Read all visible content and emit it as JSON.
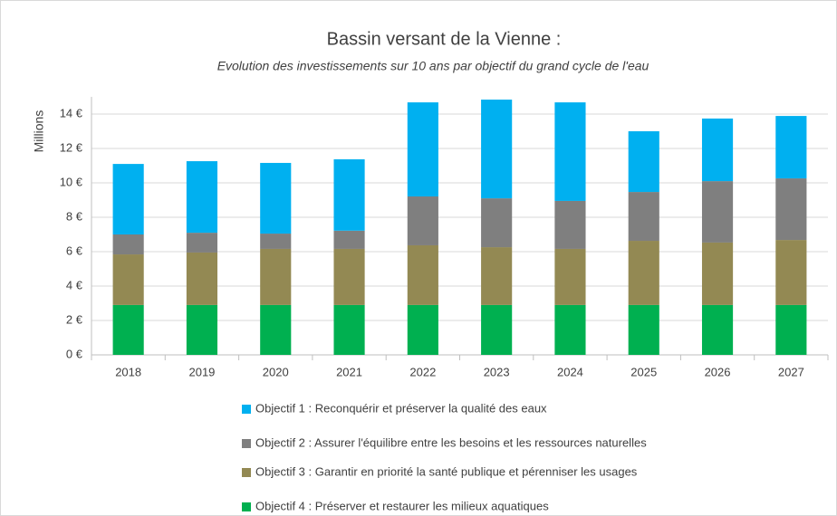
{
  "chart_data": {
    "type": "stacked_bar",
    "title": "Bassin versant de la Vienne :",
    "subtitle": "Evolution des investissements sur 10 ans par objectif du grand cycle de l'eau",
    "y_label": "Millions",
    "categories": [
      "2018",
      "2019",
      "2020",
      "2021",
      "2022",
      "2023",
      "2024",
      "2025",
      "2026",
      "2027"
    ],
    "series": [
      {
        "name": "Objectif 1 : Reconquérir et préserver la qualité des eaux",
        "color": "#00b0f0",
        "values": [
          4.1,
          4.16,
          4.11,
          4.15,
          5.47,
          5.74,
          5.73,
          3.53,
          3.64,
          3.63
        ]
      },
      {
        "name": "Objectif 2 : Assurer l'équilibre entre les besoins et les ressources naturelles",
        "color": "#7f7f7f",
        "values": [
          1.16,
          1.15,
          0.89,
          1.06,
          2.84,
          2.84,
          2.79,
          2.84,
          3.57,
          3.58
        ]
      },
      {
        "name": "Objectif 3 : Garantir en priorité la santé publique et pérenniser les usages",
        "color": "#938953",
        "values": [
          2.94,
          3.05,
          3.26,
          3.26,
          3.47,
          3.36,
          3.26,
          3.73,
          3.63,
          3.78
        ]
      },
      {
        "name": "Objectif 4 : Préserver et restaurer les milieux aquatiques",
        "color": "#00b050",
        "values": [
          2.9,
          2.9,
          2.9,
          2.9,
          2.9,
          2.9,
          2.9,
          2.9,
          2.9,
          2.9
        ]
      }
    ],
    "ylim": [
      0,
      15
    ],
    "yticks": [
      {
        "value": 0,
        "label": "0 €"
      },
      {
        "value": 2,
        "label": "2 €"
      },
      {
        "value": 4,
        "label": "4 €"
      },
      {
        "value": 6,
        "label": "6 €"
      },
      {
        "value": 8,
        "label": "8 €"
      },
      {
        "value": 10,
        "label": "10 €"
      },
      {
        "value": 12,
        "label": "12 €"
      },
      {
        "value": 14,
        "label": "14 €"
      }
    ],
    "grid": true
  }
}
